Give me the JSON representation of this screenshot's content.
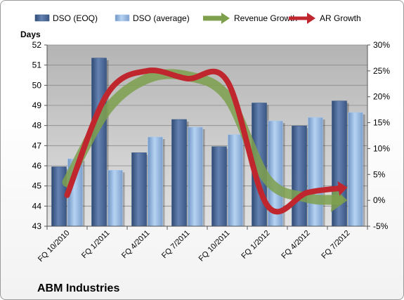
{
  "chart_data": {
    "type": "bar",
    "title": "ABM Industries",
    "ylabel": "Days",
    "ylim": [
      43,
      52
    ],
    "y2lim": [
      -5,
      30
    ],
    "yticks": [
      43,
      44,
      45,
      46,
      47,
      48,
      49,
      50,
      51,
      52
    ],
    "y2ticks": [
      "-5%",
      "0%",
      "5%",
      "10%",
      "15%",
      "20%",
      "25%",
      "30%"
    ],
    "y2values": [
      -5,
      0,
      5,
      10,
      15,
      20,
      25,
      30
    ],
    "categories": [
      "FQ 10/2010",
      "FQ 1/2011",
      "FQ 4/2011",
      "FQ 7/2011",
      "FQ 10/2011",
      "FQ 1/2012",
      "FQ 4/2012",
      "FQ 7/2012"
    ],
    "grid": true,
    "legend_position": "top",
    "series": [
      {
        "name": "DSO (EOQ)",
        "kind": "bar",
        "color": "#4f6d9b",
        "values": [
          45.95,
          51.35,
          46.65,
          48.3,
          46.95,
          49.12,
          47.98,
          49.22
        ]
      },
      {
        "name": "DSO (average)",
        "kind": "bar",
        "color": "#9dc1e8",
        "values": [
          46.35,
          45.78,
          47.43,
          47.92,
          47.55,
          48.23,
          48.4,
          48.65
        ]
      },
      {
        "name": "Revenue Growth",
        "kind": "arrow-line",
        "axis": "secondary",
        "color": "#7ea04d",
        "values": [
          3.5,
          17.5,
          23.5,
          24.0,
          20.0,
          4.0,
          0.5,
          0.0
        ]
      },
      {
        "name": "AR Growth",
        "kind": "arrow-line",
        "axis": "secondary",
        "color": "#c0262d",
        "values": [
          1.0,
          20.5,
          25.0,
          23.5,
          23.0,
          -1.0,
          1.5,
          2.5
        ]
      }
    ]
  }
}
